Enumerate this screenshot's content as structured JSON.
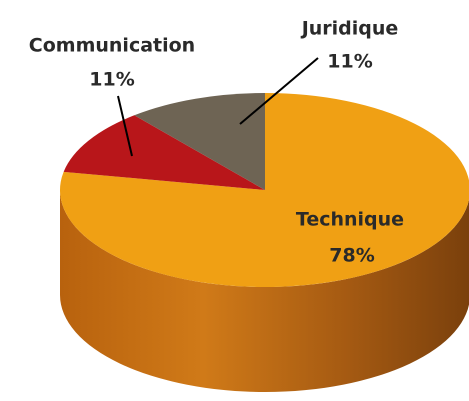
{
  "chart_data": {
    "type": "pie",
    "categories": [
      "Technique",
      "Communication",
      "Juridique"
    ],
    "values": [
      78,
      11,
      11
    ],
    "value_labels": [
      "78%",
      "11%",
      "11%"
    ],
    "colors": [
      "#f0a014",
      "#b8161a",
      "#6e6454"
    ]
  }
}
